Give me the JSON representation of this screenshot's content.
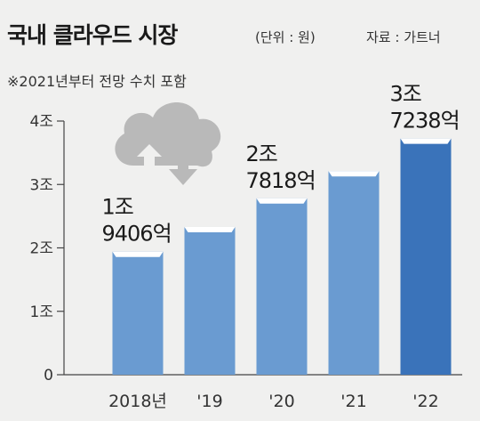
{
  "header": {
    "title": "국내 클라우드 시장",
    "unit": "(단위 : 원)",
    "source": "자료 : 가트너",
    "note": "※2021년부터 전망 수치 포함"
  },
  "colors": {
    "background": "#f0f0ef",
    "bar": "#6a9bd1",
    "bar_highlight": "#3a73ba",
    "icon": "#b9b9b9"
  },
  "icon": {
    "name": "cloud-upload-download-icon"
  },
  "chart_data": {
    "type": "bar",
    "title": "국내 클라우드 시장",
    "xlabel": "",
    "ylabel": "",
    "unit": "원",
    "categories": [
      "2018년",
      "'19",
      "'20",
      "'21",
      "'22"
    ],
    "values": [
      1.9406,
      2.33,
      2.7818,
      3.21,
      3.7238
    ],
    "ylim": [
      0,
      4
    ],
    "yticks": [
      0,
      1,
      2,
      3,
      4
    ],
    "ytick_labels": [
      "0",
      "1조",
      "2조",
      "3조",
      "4조"
    ],
    "grid": false,
    "highlight_index": 4,
    "data_labels": [
      {
        "index": 0,
        "lines": [
          "1조",
          "9406억"
        ]
      },
      {
        "index": 2,
        "lines": [
          "2조",
          "7818억"
        ]
      },
      {
        "index": 4,
        "lines": [
          "3조",
          "7238억"
        ]
      }
    ]
  }
}
